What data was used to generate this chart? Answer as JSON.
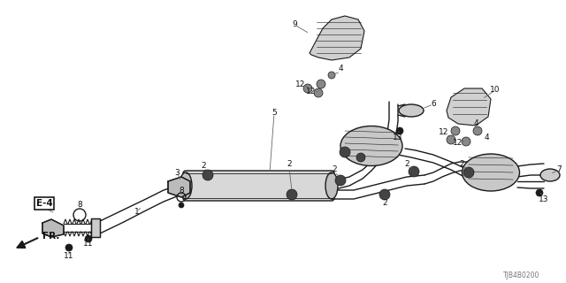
{
  "background_color": "#ffffff",
  "part_number": "TJB4B0200",
  "line_color": "#1a1a1a",
  "gray_color": "#555555",
  "light_gray": "#aaaaaa",
  "mid_gray": "#888888"
}
